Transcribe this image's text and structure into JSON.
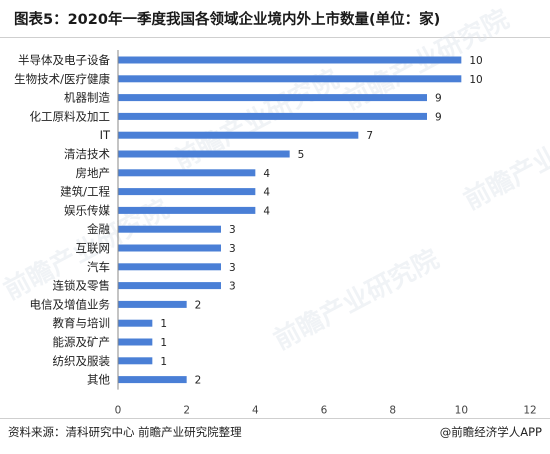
{
  "title": "图表5：2020年一季度我国各领域企业境内外上市数量(单位：家)",
  "footer": {
    "source": "资料来源：清科研究中心 前瞻产业研究院整理",
    "credit": "@前瞻经济学人APP"
  },
  "watermark": "前瞻产业研究院",
  "colors": {
    "bar": "#4a7fd6",
    "axis": "#888888",
    "text": "#222222"
  },
  "chart_data": {
    "type": "bar",
    "orientation": "horizontal",
    "categories": [
      "半导体及电子设备",
      "生物技术/医疗健康",
      "机器制造",
      "化工原料及加工",
      "IT",
      "清洁技术",
      "房地产",
      "建筑/工程",
      "娱乐传媒",
      "金融",
      "互联网",
      "汽车",
      "连锁及零售",
      "电信及增值业务",
      "教育与培训",
      "能源及矿产",
      "纺织及服装",
      "其他"
    ],
    "values": [
      10,
      10,
      9,
      9,
      7,
      5,
      4,
      4,
      4,
      3,
      3,
      3,
      3,
      2,
      1,
      1,
      1,
      2
    ],
    "x_ticks": [
      0,
      2,
      4,
      6,
      8,
      10,
      12
    ],
    "xlim": [
      0,
      12
    ],
    "data_labels": true,
    "grid": false,
    "legend": "none"
  }
}
